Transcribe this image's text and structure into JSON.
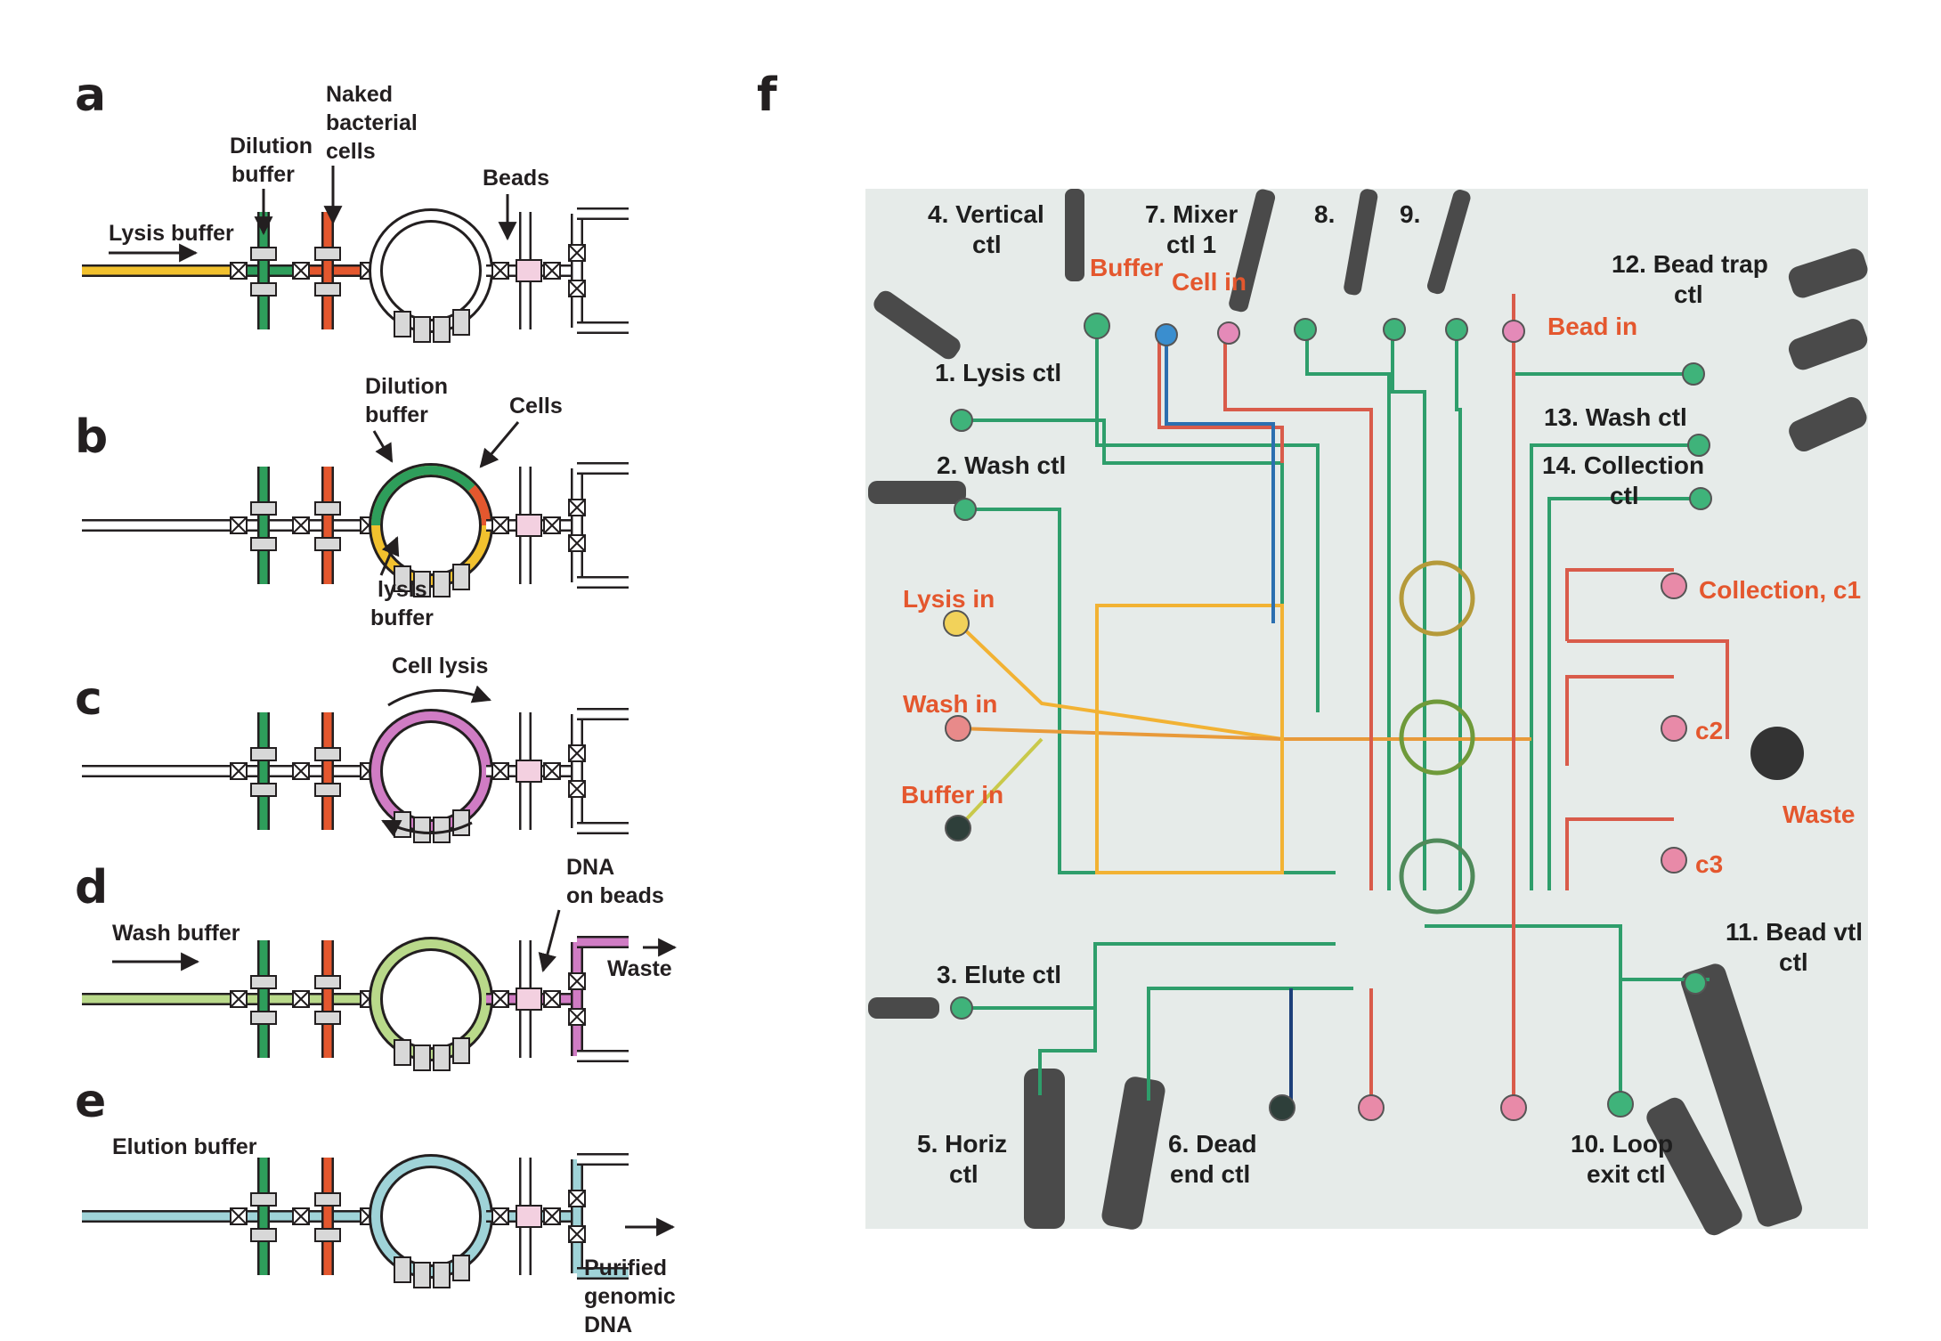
{
  "panels": {
    "a": {
      "letter": "a",
      "labels": {
        "lysis_buffer": "Lysis buffer",
        "dilution_1": "Dilution",
        "dilution_2": "buffer",
        "naked_1": "Naked",
        "naked_2": "bacterial",
        "naked_3": "cells",
        "beads": "Beads"
      }
    },
    "b": {
      "letter": "b",
      "labels": {
        "dilution_1": "Dilution",
        "dilution_2": "buffer",
        "cells": "Cells",
        "lysis_1": "lysis",
        "lysis_2": "buffer"
      }
    },
    "c": {
      "letter": "c",
      "labels": {
        "cell_lysis": "Cell lysis"
      }
    },
    "d": {
      "letter": "d",
      "labels": {
        "wash_buffer": "Wash buffer",
        "dna_1": "DNA",
        "dna_2": "on beads",
        "waste": "Waste"
      }
    },
    "e": {
      "letter": "e",
      "labels": {
        "elution_buffer": "Elution buffer",
        "purified_1": "Purified",
        "purified_2": "genomic",
        "purified_3": "DNA"
      }
    },
    "f": {
      "letter": "f",
      "labels": {
        "vertical_1": "4. Vertical",
        "vertical_2": "ctl",
        "mixer_1": "7. Mixer",
        "mixer_2": "ctl 1",
        "n8": "8.",
        "n9": "9.",
        "bead_trap_1": "12. Bead trap",
        "bead_trap_2": "ctl",
        "buffer": "Buffer",
        "cell_in": "Cell in",
        "bead_in": "Bead in",
        "lysis_ctl": "1. Lysis ctl",
        "wash_ctl_13": "13. Wash ctl",
        "wash_ctl_2": "2. Wash ctl",
        "collection_1": "14. Collection",
        "collection_2": "ctl",
        "lysis_in": "Lysis in",
        "collection_c1": "Collection, c1",
        "wash_in": "Wash in",
        "c2": "c2",
        "buffer_in": "Buffer in",
        "waste": "Waste",
        "c3": "c3",
        "bead_vtl_1": "11. Bead vtl",
        "bead_vtl_2": "ctl",
        "elute_ctl": "3. Elute ctl",
        "horiz_1": "5. Horiz",
        "horiz_2": "ctl",
        "dead_end_1": "6. Dead",
        "dead_end_2": "end ctl",
        "loop_exit_1": "10. Loop",
        "loop_exit_2": "exit ctl"
      }
    }
  },
  "colors": {
    "lysis": "#f2c12e",
    "dilution": "#2e9e5b",
    "cells": "#e4572e",
    "wash": "#b9d98a",
    "lysis_mix": "#d07cc4",
    "elution": "#9fd3d8",
    "waste": "#d07cc4",
    "outline": "#231f20",
    "photo_bg": "#e6ebe9",
    "red_label": "#e4572e"
  }
}
